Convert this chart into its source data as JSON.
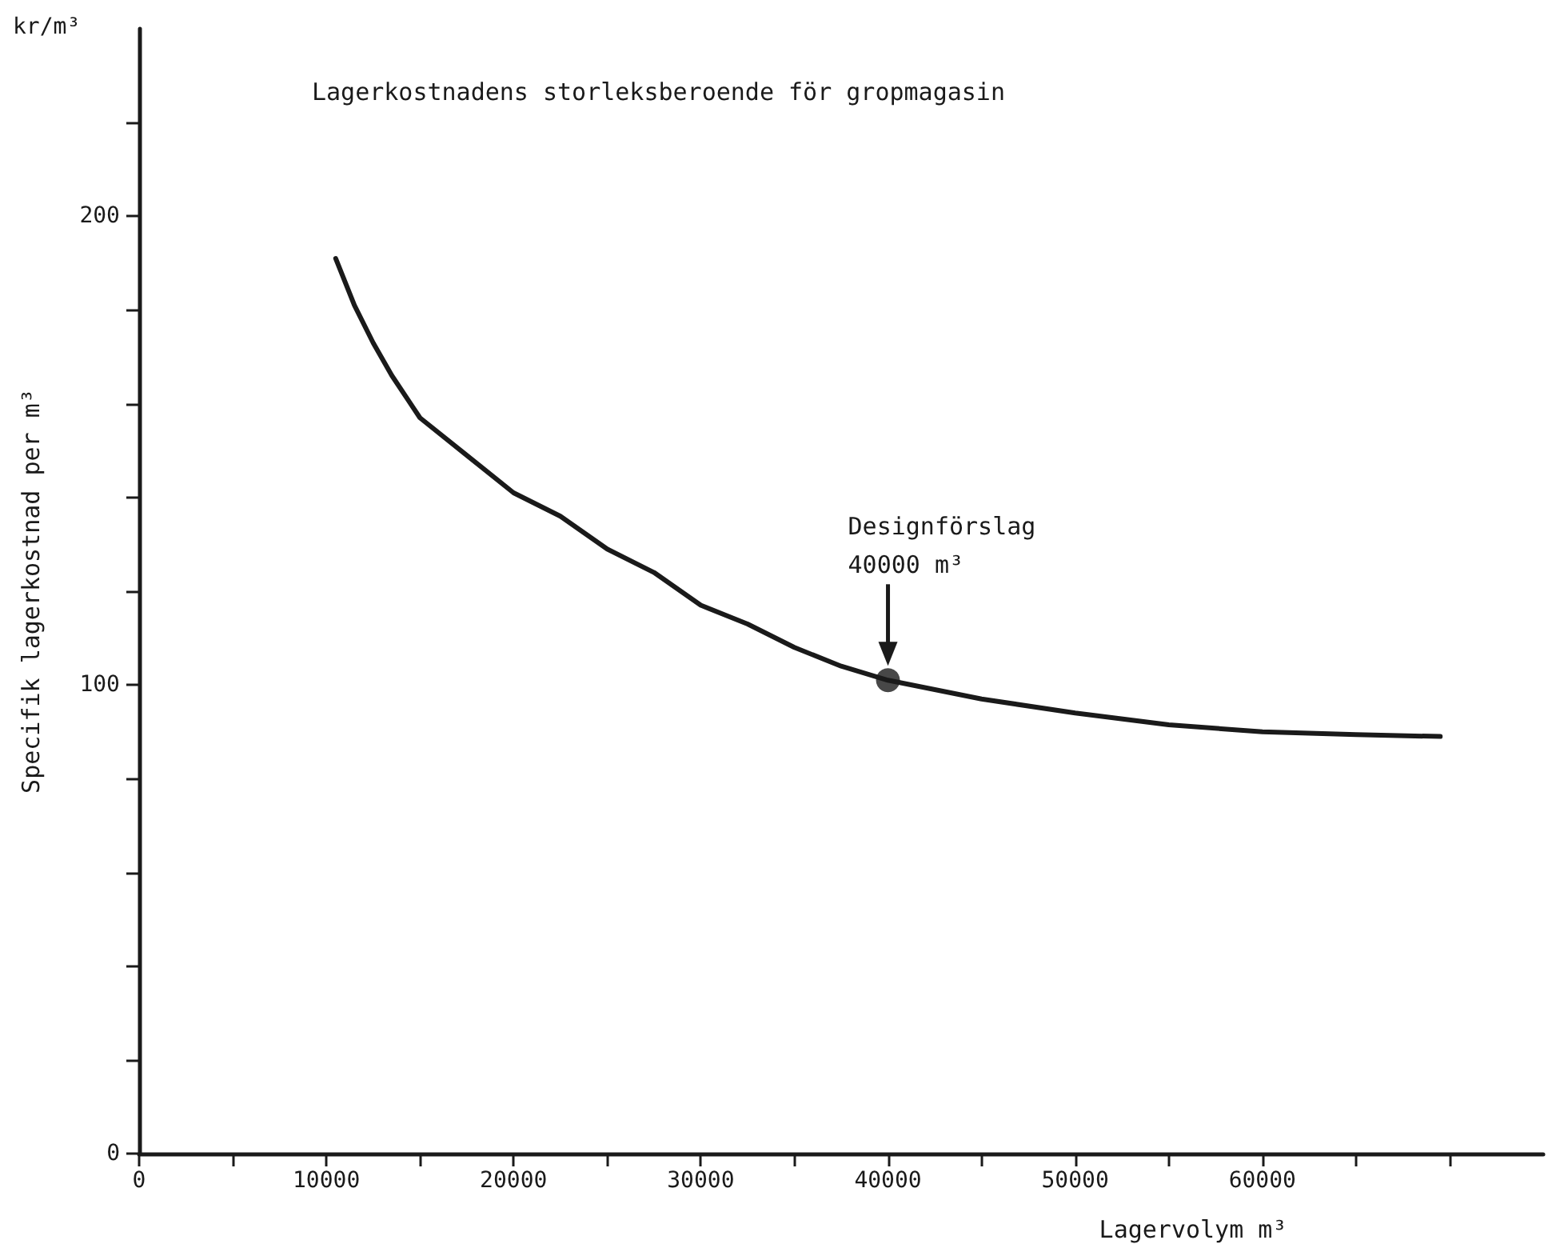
{
  "chart_data": {
    "type": "line",
    "title": "Lagerkostnadens storleksberoende för gropmagasin",
    "xlabel": "Lagervolym m³",
    "ylabel": "Specifik lagerkostnad per m³",
    "annotations": [
      "kr/m³",
      "Designförslag\n40000 m³"
    ],
    "xlim": [
      0,
      75000
    ],
    "ylim": [
      0,
      240
    ],
    "xticks": [
      0,
      {
        "value": 5000,
        "label": null
      },
      10000,
      {
        "value": 15000,
        "label": null
      },
      20000,
      {
        "value": 25000,
        "label": null
      },
      30000,
      {
        "value": 35000,
        "label": null
      },
      40000,
      {
        "value": 45000,
        "label": null
      },
      50000,
      {
        "value": 55000,
        "label": null
      },
      60000,
      {
        "value": 65000,
        "label": null
      },
      {
        "value": 70000,
        "label": null
      }
    ],
    "yticks": [
      0,
      {
        "value": 20,
        "label": null
      },
      {
        "value": 40,
        "label": null
      },
      {
        "value": 60,
        "label": null
      },
      {
        "value": 80,
        "label": null
      },
      100,
      {
        "value": 120,
        "label": null
      },
      {
        "value": 140,
        "label": null
      },
      {
        "value": 160,
        "label": null
      },
      {
        "value": 180,
        "label": null
      },
      200,
      {
        "value": 220,
        "label": null
      }
    ],
    "grid": false,
    "marker": "none",
    "line_style": "solid",
    "series": [
      {
        "color": "#1a1a1a",
        "x": [
          10500,
          11500,
          12500,
          13500,
          15000,
          17500,
          20000,
          22500,
          25000,
          27500,
          30000,
          32500,
          35000,
          37500,
          40000,
          45000,
          50000,
          55000,
          60000,
          65000,
          69500
        ],
        "values": [
          191,
          181,
          173,
          166,
          157,
          149,
          141,
          136,
          129,
          124,
          117,
          113,
          108,
          104,
          101,
          97,
          94,
          91.5,
          90,
          89.4,
          89
        ]
      },
      {
        "type": "scatter",
        "marker": "circle",
        "color": "#1a1a1a",
        "x": [
          40000
        ],
        "values": [
          101
        ]
      }
    ]
  }
}
